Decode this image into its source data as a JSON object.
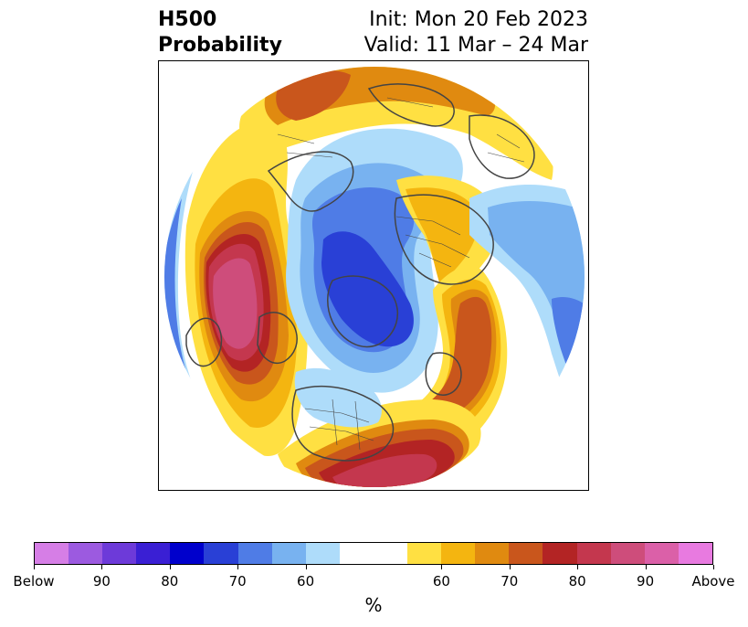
{
  "header": {
    "title_line1": "H500",
    "title_line2": "Probability",
    "init_text": "Init: Mon 20 Feb 2023",
    "valid_text": "Valid: 11 Mar – 24 Mar"
  },
  "colorbar": {
    "unit": "%",
    "colors": [
      "#d67ee6",
      "#9c5ae0",
      "#6d3ad9",
      "#3a1fd4",
      "#0000cc",
      "#2940d6",
      "#4f7ce6",
      "#78b2f0",
      "#aedcfa",
      "#ffffff",
      "#ffffff",
      "#ffe042",
      "#f4b510",
      "#e08a10",
      "#c9561c",
      "#b32424",
      "#c4374e",
      "#ce4d7b",
      "#db60a8",
      "#e87ae0"
    ],
    "tick_labels": [
      "Below",
      "90",
      "80",
      "70",
      "60",
      "60",
      "70",
      "80",
      "90",
      "Above"
    ]
  },
  "legend_colors": {
    "below_strong": "#2940d6",
    "below_mid": "#4f7ce6",
    "below_weak": "#aedcfa",
    "above_weak": "#ffe042",
    "above_mid": "#e08a10",
    "above_strong": "#b32424",
    "above_extreme": "#ce4d7b",
    "coast": "#444444"
  }
}
